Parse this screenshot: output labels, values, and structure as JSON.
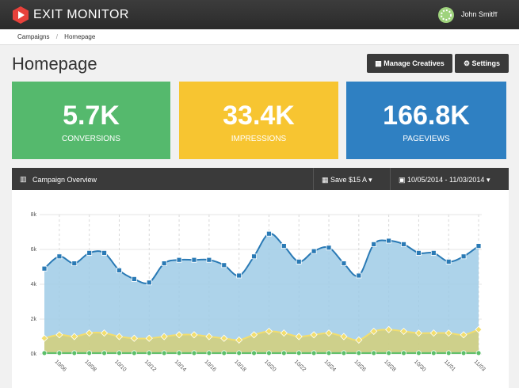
{
  "header": {
    "brand": "EXIT MONITOR",
    "user": "John Smith"
  },
  "breadcrumb": [
    "Campaigns",
    "Homepage"
  ],
  "page_title": "Homepage",
  "buttons": [
    "Manage Creatives",
    "Settings"
  ],
  "stats": [
    {
      "value": "5.7K",
      "label": "CONVERSIONS",
      "color": "#55b96d"
    },
    {
      "value": "33.4K",
      "label": "IMPRESSIONS",
      "color": "#f7c531"
    },
    {
      "value": "166.8K",
      "label": "PAGEVIEWS",
      "color": "#2f80c2"
    }
  ],
  "panel": {
    "title": "Campaign Overview",
    "save": "Save $15 A",
    "dates": "10/05/2014 - 11/03/2014"
  },
  "chart_data": {
    "type": "area",
    "categories": [
      null,
      "10/06",
      null,
      "10/08",
      null,
      "10/10",
      null,
      "10/12",
      null,
      "10/14",
      null,
      "10/16",
      null,
      "10/18",
      null,
      "10/20",
      null,
      "10/22",
      null,
      "10/24",
      null,
      "10/26",
      null,
      "10/28",
      null,
      "10/30",
      null,
      "11/01",
      null,
      "11/03"
    ],
    "series": [
      {
        "color": "#2a7ab5",
        "fill": "#9fcbe6",
        "marker": "square",
        "values": [
          4900,
          5600,
          5200,
          5800,
          5800,
          4800,
          4300,
          4100,
          5200,
          5400,
          5400,
          5400,
          5100,
          4500,
          5600,
          6900,
          6200,
          5300,
          5900,
          6100,
          5200,
          4500,
          6300,
          6500,
          6300,
          5800,
          5800,
          5300,
          5600,
          6200
        ]
      },
      {
        "color": "#f2de6e",
        "fill": "#d4cf7a",
        "marker": "diamond",
        "values": [
          900,
          1100,
          1000,
          1200,
          1200,
          1000,
          900,
          900,
          1000,
          1100,
          1100,
          1000,
          900,
          800,
          1100,
          1300,
          1200,
          1000,
          1100,
          1200,
          1000,
          800,
          1300,
          1400,
          1300,
          1200,
          1200,
          1200,
          1100,
          1400
        ]
      },
      {
        "color": "#5cbf6a",
        "fill": "#8fc97a",
        "marker": "circle",
        "values": [
          50,
          50,
          50,
          50,
          50,
          50,
          50,
          50,
          50,
          50,
          50,
          50,
          50,
          50,
          50,
          50,
          50,
          50,
          50,
          50,
          50,
          50,
          50,
          50,
          50,
          50,
          50,
          50,
          50,
          50
        ]
      }
    ],
    "ylim": [
      0,
      8000
    ],
    "yticks": [
      {
        "value": 0,
        "label": "0k"
      },
      {
        "value": 2000,
        "label": "2k"
      },
      {
        "value": 4000,
        "label": "4k"
      },
      {
        "value": 6000,
        "label": "6k"
      },
      {
        "value": 8000,
        "label": "8k"
      }
    ],
    "grid": true
  }
}
